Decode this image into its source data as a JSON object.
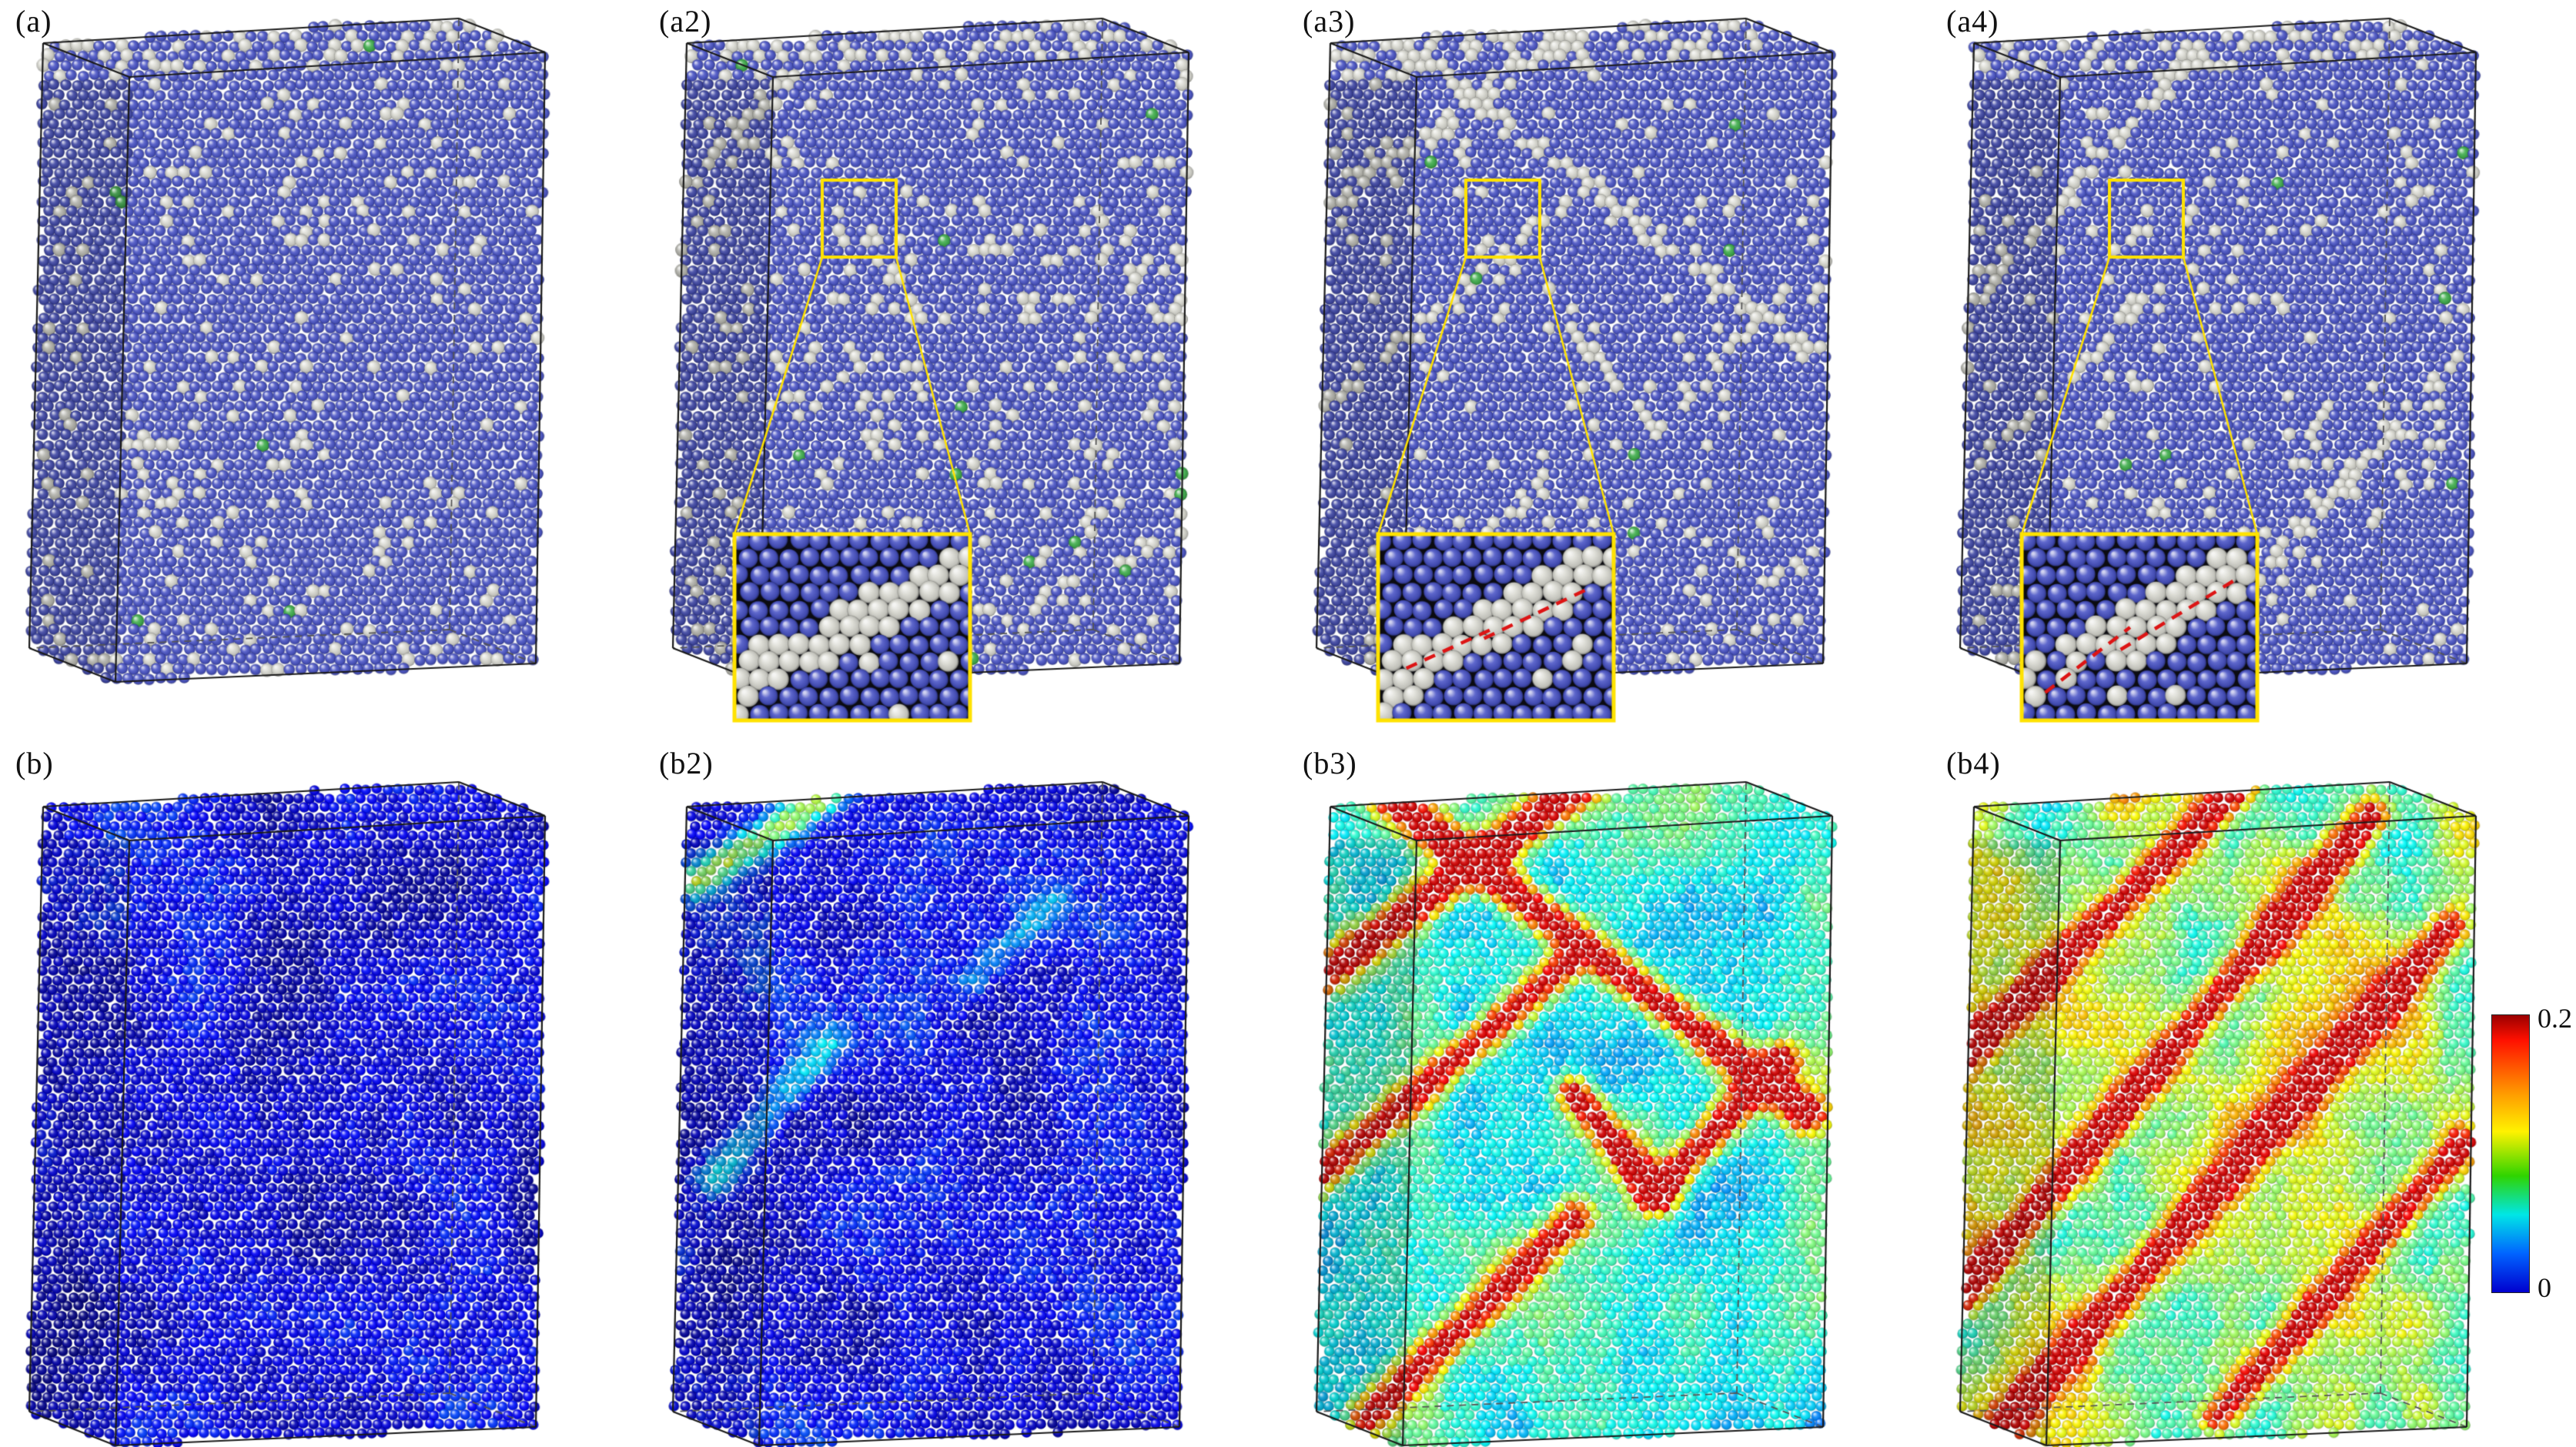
{
  "figure": {
    "kind": "molecular-dynamics-simulation-snapshots",
    "background": "#ffffff",
    "grid": {
      "rows": 2,
      "cols": 4
    }
  },
  "colors": {
    "atom_blue": "#4953c6",
    "atom_white": "#d9d9d1",
    "atom_green": "#3fae4c",
    "box_edge": "#1a1a1a",
    "hidden_edge": "#555555",
    "inset_border": "#ffe200",
    "dislocation_red": "#dd1515",
    "inset_background": "#0b0b10"
  },
  "panels": [
    {
      "id": "a",
      "label": "(a)",
      "row": 0,
      "col": 0,
      "type": "structure",
      "params": {
        "pw": 0.05,
        "pg": 0.0035,
        "bands": []
      },
      "inset": null
    },
    {
      "id": "a2",
      "label": "(a2)",
      "row": 0,
      "col": 1,
      "type": "structure",
      "params": {
        "pw": 0.065,
        "pg": 0.004,
        "bands": [
          {
            "seg": [
              0.02,
              0.26,
              0.3,
              0.02
            ],
            "w": 0.02,
            "p": 0.55
          },
          {
            "seg": [
              0.52,
              0.1,
              0.7,
              0.0
            ],
            "w": 0.014,
            "p": 0.35
          },
          {
            "seg": [
              0.58,
              0.96,
              0.82,
              0.8
            ],
            "w": 0.016,
            "p": 0.4
          }
        ]
      },
      "inset": {
        "red_lines": []
      }
    },
    {
      "id": "a3",
      "label": "(a3)",
      "row": 0,
      "col": 2,
      "type": "structure",
      "params": {
        "pw": 0.032,
        "pg": 0.002,
        "bands": [
          {
            "seg": [
              0.0,
              0.3,
              0.52,
              0.0
            ],
            "w": 0.022,
            "p": 0.9
          },
          {
            "seg": [
              0.1,
              0.0,
              0.95,
              0.5
            ],
            "w": 0.022,
            "p": 0.85
          },
          {
            "seg": [
              0.0,
              0.6,
              0.48,
              0.28
            ],
            "w": 0.018,
            "p": 0.75
          },
          {
            "seg": [
              0.5,
              0.47,
              0.66,
              0.62
            ],
            "w": 0.018,
            "p": 0.8
          },
          {
            "seg": [
              0.66,
              0.62,
              0.9,
              0.42
            ],
            "w": 0.018,
            "p": 0.8
          },
          {
            "seg": [
              0.1,
              0.96,
              0.5,
              0.66
            ],
            "w": 0.02,
            "p": 0.7
          }
        ]
      },
      "inset": {
        "red_lines": [
          [
            0.12,
            0.72,
            0.5,
            0.5
          ],
          [
            0.45,
            0.56,
            0.88,
            0.3
          ]
        ]
      }
    },
    {
      "id": "a4",
      "label": "(a4)",
      "row": 0,
      "col": 3,
      "type": "structure",
      "params": {
        "pw": 0.045,
        "pg": 0.003,
        "bands": [
          {
            "seg": [
              0.02,
              0.44,
              0.46,
              0.05
            ],
            "w": 0.022,
            "p": 0.85
          },
          {
            "seg": [
              0.1,
              0.64,
              0.36,
              0.42
            ],
            "w": 0.016,
            "p": 0.55
          },
          {
            "seg": [
              0.44,
              0.96,
              0.97,
              0.52
            ],
            "w": 0.022,
            "p": 0.8
          }
        ]
      },
      "inset": {
        "red_lines": [
          [
            0.1,
            0.85,
            0.46,
            0.5
          ],
          [
            0.42,
            0.62,
            0.9,
            0.25
          ]
        ]
      }
    },
    {
      "id": "b",
      "label": "(b)",
      "row": 1,
      "col": 0,
      "type": "strain",
      "params": {
        "base": 0.022,
        "namp": 0.02,
        "nscale": 6,
        "bands": []
      }
    },
    {
      "id": "b2",
      "label": "(b2)",
      "row": 1,
      "col": 1,
      "type": "strain",
      "params": {
        "base": 0.024,
        "namp": 0.024,
        "nscale": 6,
        "bands": [
          {
            "seg": [
              0.05,
              0.15,
              0.3,
              0.02
            ],
            "w": 0.03,
            "amp": 0.09
          },
          {
            "seg": [
              0.08,
              0.6,
              0.3,
              0.4
            ],
            "w": 0.035,
            "amp": 0.05
          },
          {
            "seg": [
              0.58,
              0.3,
              0.74,
              0.18
            ],
            "w": 0.028,
            "amp": 0.035
          }
        ]
      }
    },
    {
      "id": "b3",
      "label": "(b3)",
      "row": 1,
      "col": 2,
      "type": "strain",
      "params": {
        "base": 0.085,
        "namp": 0.04,
        "nscale": 5,
        "bands": [
          {
            "seg": [
              0.0,
              0.3,
              0.52,
              0.0
            ],
            "w": 0.035,
            "amp": 0.15
          },
          {
            "seg": [
              0.1,
              0.0,
              0.95,
              0.5
            ],
            "w": 0.032,
            "amp": 0.15
          },
          {
            "seg": [
              0.0,
              0.6,
              0.48,
              0.28
            ],
            "w": 0.03,
            "amp": 0.13
          },
          {
            "seg": [
              0.5,
              0.47,
              0.66,
              0.62
            ],
            "w": 0.03,
            "amp": 0.14
          },
          {
            "seg": [
              0.66,
              0.62,
              0.9,
              0.42
            ],
            "w": 0.03,
            "amp": 0.14
          },
          {
            "seg": [
              0.1,
              0.96,
              0.5,
              0.66
            ],
            "w": 0.032,
            "amp": 0.13
          }
        ]
      }
    },
    {
      "id": "b4",
      "label": "(b4)",
      "row": 1,
      "col": 3,
      "type": "strain",
      "params": {
        "base": 0.115,
        "namp": 0.055,
        "nscale": 6,
        "bands": [
          {
            "seg": [
              0.0,
              0.42,
              0.55,
              0.0
            ],
            "w": 0.03,
            "amp": 0.12
          },
          {
            "seg": [
              0.0,
              0.78,
              0.8,
              0.05
            ],
            "w": 0.03,
            "amp": 0.13
          },
          {
            "seg": [
              0.1,
              0.96,
              0.95,
              0.22
            ],
            "w": 0.03,
            "amp": 0.12
          },
          {
            "seg": [
              0.5,
              0.96,
              0.97,
              0.55
            ],
            "w": 0.028,
            "amp": 0.11
          }
        ]
      }
    }
  ],
  "colorbar": {
    "max_label": "0.2",
    "min_label": "0",
    "orientation": "vertical",
    "gradient_stops": [
      "#9b0000 0%",
      "#ff1000 9%",
      "#ff9900 28%",
      "#fff200 42%",
      "#2fd400 58%",
      "#00e6e6 72%",
      "#0064ff 86%",
      "#0000cf 100%"
    ]
  }
}
